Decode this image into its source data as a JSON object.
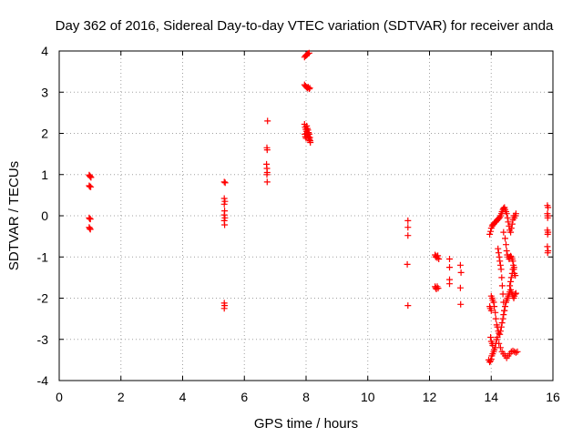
{
  "chart_data": {
    "type": "scatter",
    "title": "Day 362 of 2016, Sidereal Day-to-day VTEC variation (SDTVAR) for receiver anda",
    "xlabel": "GPS time / hours",
    "ylabel": "SDTVAR / TECUs",
    "xlim": [
      0,
      16
    ],
    "ylim": [
      -4,
      4
    ],
    "xticks": [
      0,
      2,
      4,
      6,
      8,
      10,
      12,
      14,
      16
    ],
    "yticks": [
      -4,
      -3,
      -2,
      -1,
      0,
      1,
      2,
      3,
      4
    ],
    "grid": true,
    "marker": "plus",
    "color": "#ff0000",
    "series": [
      {
        "name": "SDTVAR",
        "points": [
          [
            0.97,
            0.99
          ],
          [
            0.99,
            0.97
          ],
          [
            1.01,
            0.95
          ],
          [
            1.03,
            0.93
          ],
          [
            0.97,
            0.73
          ],
          [
            0.99,
            0.71
          ],
          [
            1.02,
            0.7
          ],
          [
            0.97,
            -0.05
          ],
          [
            0.99,
            -0.07
          ],
          [
            1.01,
            -0.08
          ],
          [
            0.97,
            -0.28
          ],
          [
            0.99,
            -0.31
          ],
          [
            1.01,
            -0.33
          ],
          [
            5.35,
            0.82
          ],
          [
            5.38,
            0.8
          ],
          [
            5.35,
            0.42
          ],
          [
            5.37,
            0.35
          ],
          [
            5.35,
            0.28
          ],
          [
            5.36,
            0.12
          ],
          [
            5.35,
            0.02
          ],
          [
            5.37,
            -0.05
          ],
          [
            5.35,
            -0.12
          ],
          [
            5.36,
            -0.22
          ],
          [
            5.35,
            -2.12
          ],
          [
            5.36,
            -2.18
          ],
          [
            5.35,
            -2.25
          ],
          [
            6.75,
            2.3
          ],
          [
            6.73,
            1.65
          ],
          [
            6.74,
            1.6
          ],
          [
            6.72,
            1.25
          ],
          [
            6.73,
            1.15
          ],
          [
            6.74,
            1.05
          ],
          [
            6.73,
            1.0
          ],
          [
            6.74,
            0.82
          ],
          [
            7.95,
            3.85
          ],
          [
            7.98,
            3.88
          ],
          [
            8.01,
            3.9
          ],
          [
            8.04,
            3.92
          ],
          [
            8.07,
            3.94
          ],
          [
            8.1,
            3.95
          ],
          [
            7.95,
            3.18
          ],
          [
            7.98,
            3.15
          ],
          [
            8.01,
            3.12
          ],
          [
            8.04,
            3.1
          ],
          [
            8.07,
            3.12
          ],
          [
            8.1,
            3.08
          ],
          [
            8.12,
            3.1
          ],
          [
            7.95,
            2.22
          ],
          [
            7.97,
            2.15
          ],
          [
            7.99,
            2.1
          ],
          [
            8.01,
            2.05
          ],
          [
            8.03,
            2.0
          ],
          [
            8.05,
            1.95
          ],
          [
            8.07,
            1.92
          ],
          [
            8.09,
            1.88
          ],
          [
            8.11,
            1.85
          ],
          [
            8.13,
            1.82
          ],
          [
            7.96,
            1.98
          ],
          [
            7.98,
            1.92
          ],
          [
            8.0,
            1.88
          ],
          [
            8.02,
            2.18
          ],
          [
            8.04,
            2.12
          ],
          [
            8.06,
            2.08
          ],
          [
            8.08,
            2.02
          ],
          [
            8.1,
            1.98
          ],
          [
            8.12,
            1.9
          ],
          [
            8.14,
            1.78
          ],
          [
            11.3,
            -0.12
          ],
          [
            11.3,
            -0.28
          ],
          [
            11.3,
            -0.48
          ],
          [
            11.28,
            -1.18
          ],
          [
            11.3,
            -2.18
          ],
          [
            12.18,
            -0.95
          ],
          [
            12.2,
            -1.0
          ],
          [
            12.22,
            -0.98
          ],
          [
            12.25,
            -1.02
          ],
          [
            12.27,
            -0.97
          ],
          [
            12.3,
            -1.05
          ],
          [
            12.18,
            -1.72
          ],
          [
            12.2,
            -1.75
          ],
          [
            12.22,
            -1.78
          ],
          [
            12.25,
            -1.72
          ],
          [
            12.28,
            -1.76
          ],
          [
            12.65,
            -1.05
          ],
          [
            12.65,
            -1.25
          ],
          [
            12.65,
            -1.55
          ],
          [
            12.65,
            -1.65
          ],
          [
            13.0,
            -1.2
          ],
          [
            13.02,
            -1.38
          ],
          [
            13.0,
            -1.75
          ],
          [
            13.01,
            -2.15
          ],
          [
            13.95,
            -0.45
          ],
          [
            13.98,
            -0.38
          ],
          [
            14.0,
            -0.3
          ],
          [
            14.03,
            -0.25
          ],
          [
            14.05,
            -0.22
          ],
          [
            14.08,
            -0.2
          ],
          [
            14.1,
            -0.18
          ],
          [
            14.13,
            -0.15
          ],
          [
            14.15,
            -0.15
          ],
          [
            14.18,
            -0.12
          ],
          [
            14.2,
            -0.1
          ],
          [
            14.23,
            -0.08
          ],
          [
            14.25,
            -0.06
          ],
          [
            14.28,
            -0.04
          ],
          [
            14.3,
            0.0
          ],
          [
            14.33,
            0.05
          ],
          [
            14.35,
            0.1
          ],
          [
            14.38,
            0.15
          ],
          [
            14.4,
            0.18
          ],
          [
            14.43,
            0.2
          ],
          [
            14.45,
            0.15
          ],
          [
            14.48,
            0.1
          ],
          [
            14.5,
            0.05
          ],
          [
            14.53,
            -0.05
          ],
          [
            14.55,
            -0.15
          ],
          [
            14.58,
            -0.25
          ],
          [
            14.6,
            -0.35
          ],
          [
            14.63,
            -0.4
          ],
          [
            14.65,
            -0.3
          ],
          [
            14.68,
            -0.2
          ],
          [
            14.7,
            -0.1
          ],
          [
            14.73,
            0.0
          ],
          [
            14.75,
            -0.05
          ],
          [
            14.78,
            0.0
          ],
          [
            14.8,
            0.05
          ],
          [
            14.0,
            -1.95
          ],
          [
            14.03,
            -2.0
          ],
          [
            14.05,
            -2.05
          ],
          [
            14.08,
            -2.1
          ],
          [
            14.1,
            -2.2
          ],
          [
            14.13,
            -2.35
          ],
          [
            14.15,
            -2.5
          ],
          [
            14.18,
            -2.65
          ],
          [
            14.2,
            -2.7
          ],
          [
            14.23,
            -2.8
          ],
          [
            14.25,
            -2.85
          ],
          [
            14.28,
            -2.88
          ],
          [
            14.3,
            -2.8
          ],
          [
            14.33,
            -2.7
          ],
          [
            14.35,
            -2.6
          ],
          [
            14.38,
            -2.5
          ],
          [
            14.4,
            -2.4
          ],
          [
            14.43,
            -2.3
          ],
          [
            14.45,
            -2.2
          ],
          [
            14.48,
            -2.1
          ],
          [
            14.5,
            -2.05
          ],
          [
            14.53,
            -2.0
          ],
          [
            14.55,
            -1.95
          ],
          [
            14.58,
            -1.9
          ],
          [
            14.6,
            -1.85
          ],
          [
            14.63,
            -1.8
          ],
          [
            14.65,
            -1.85
          ],
          [
            14.68,
            -1.9
          ],
          [
            14.7,
            -1.95
          ],
          [
            14.73,
            -2.0
          ],
          [
            14.75,
            -1.95
          ],
          [
            14.78,
            -1.9
          ],
          [
            14.8,
            -1.88
          ],
          [
            14.6,
            -1.7
          ],
          [
            14.63,
            -1.6
          ],
          [
            14.65,
            -1.5
          ],
          [
            14.68,
            -1.4
          ],
          [
            14.7,
            -1.3
          ],
          [
            14.73,
            -1.3
          ],
          [
            14.75,
            -1.4
          ],
          [
            14.78,
            -1.45
          ],
          [
            14.4,
            -0.4
          ],
          [
            14.45,
            -0.55
          ],
          [
            14.48,
            -0.7
          ],
          [
            14.5,
            -0.85
          ],
          [
            14.52,
            -0.95
          ],
          [
            14.55,
            -1.0
          ],
          [
            14.58,
            -1.05
          ],
          [
            14.6,
            -1.0
          ],
          [
            14.63,
            -0.98
          ],
          [
            14.65,
            -1.0
          ],
          [
            14.68,
            -1.05
          ],
          [
            14.7,
            -1.1
          ],
          [
            14.72,
            -1.2
          ],
          [
            14.74,
            -1.25
          ],
          [
            14.22,
            -0.8
          ],
          [
            14.24,
            -0.9
          ],
          [
            14.26,
            -1.0
          ],
          [
            14.28,
            -1.1
          ],
          [
            14.3,
            -1.2
          ],
          [
            14.32,
            -1.3
          ],
          [
            14.34,
            -1.5
          ],
          [
            14.36,
            -1.7
          ],
          [
            14.38,
            -1.9
          ],
          [
            14.4,
            -2.1
          ],
          [
            14.42,
            -2.3
          ],
          [
            13.92,
            -3.5
          ],
          [
            13.95,
            -3.55
          ],
          [
            13.98,
            -3.52
          ],
          [
            14.0,
            -3.48
          ],
          [
            14.02,
            -3.4
          ],
          [
            14.05,
            -3.35
          ],
          [
            14.08,
            -3.3
          ],
          [
            14.1,
            -3.25
          ],
          [
            14.13,
            -3.2
          ],
          [
            14.15,
            -3.1
          ],
          [
            14.18,
            -3.0
          ],
          [
            14.2,
            -2.95
          ],
          [
            14.25,
            -3.1
          ],
          [
            14.3,
            -3.2
          ],
          [
            14.35,
            -3.3
          ],
          [
            14.4,
            -3.35
          ],
          [
            14.45,
            -3.4
          ],
          [
            14.5,
            -3.45
          ],
          [
            14.55,
            -3.4
          ],
          [
            14.6,
            -3.35
          ],
          [
            14.65,
            -3.3
          ],
          [
            14.7,
            -3.28
          ],
          [
            14.75,
            -3.3
          ],
          [
            14.8,
            -3.32
          ],
          [
            14.85,
            -3.3
          ],
          [
            13.98,
            -2.95
          ],
          [
            14.0,
            -3.05
          ],
          [
            14.03,
            -3.1
          ],
          [
            14.05,
            -3.15
          ],
          [
            13.95,
            -2.2
          ],
          [
            13.97,
            -2.25
          ],
          [
            14.0,
            -2.3
          ],
          [
            15.82,
            0.25
          ],
          [
            15.84,
            0.2
          ],
          [
            15.82,
            0.05
          ],
          [
            15.84,
            0.0
          ],
          [
            15.83,
            -0.05
          ],
          [
            15.82,
            -0.35
          ],
          [
            15.84,
            -0.4
          ],
          [
            15.83,
            -0.45
          ],
          [
            15.82,
            -0.75
          ],
          [
            15.84,
            -0.85
          ],
          [
            15.83,
            -0.9
          ]
        ]
      }
    ]
  }
}
